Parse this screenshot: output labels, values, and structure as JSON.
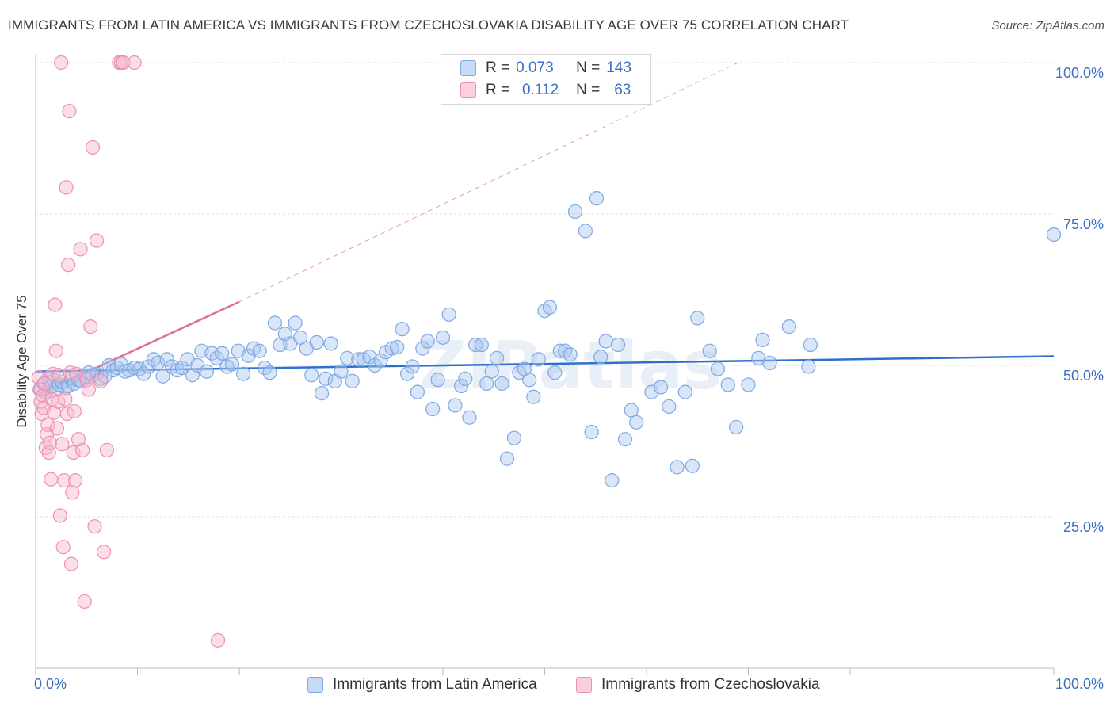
{
  "header": {
    "title": "IMMIGRANTS FROM LATIN AMERICA VS IMMIGRANTS FROM CZECHOSLOVAKIA DISABILITY AGE OVER 75 CORRELATION CHART",
    "source": "Source: ZipAtlas.com"
  },
  "watermark": "ZIPatlas",
  "stats_legend": {
    "rows": [
      {
        "r_label": "R =",
        "r_value": "0.073",
        "n_label": "N =",
        "n_value": "143",
        "color": "#a9c8f0"
      },
      {
        "r_label": "R =",
        "r_value": "0.112",
        "n_label": "N =",
        "n_value": "63",
        "color": "#f6b8cb"
      }
    ]
  },
  "chart_data": {
    "type": "scatter",
    "title": "IMMIGRANTS FROM LATIN AMERICA VS IMMIGRANTS FROM CZECHOSLOVAKIA DISABILITY AGE OVER 75 CORRELATION CHART",
    "xlabel": "",
    "ylabel": "Disability Age Over 75",
    "xlim": [
      0,
      100
    ],
    "ylim": [
      0,
      100
    ],
    "x_tick_labels": [
      "0.0%",
      "100.0%"
    ],
    "y_tick_labels": [
      "25.0%",
      "50.0%",
      "75.0%",
      "100.0%"
    ],
    "y_ticks": [
      25,
      50,
      75,
      100
    ],
    "grid": true,
    "legend_position": "bottom",
    "series": [
      {
        "name": "Immigrants from Latin America",
        "color": "#7fa8e4",
        "fill": "#a9c8f0",
        "trend": {
          "x": [
            0,
            100
          ],
          "y": [
            49.0,
            51.5
          ],
          "color": "#2f6fcc",
          "style": "solid"
        },
        "points": [
          [
            0.5,
            46
          ],
          [
            0.8,
            47
          ],
          [
            1,
            45.5
          ],
          [
            1.3,
            48
          ],
          [
            1.5,
            46.5
          ],
          [
            1.8,
            47.5
          ],
          [
            2,
            46
          ],
          [
            2.3,
            46.8
          ],
          [
            2.6,
            47.2
          ],
          [
            2.9,
            46.3
          ],
          [
            3.2,
            46.6
          ],
          [
            3.5,
            47.8
          ],
          [
            3.8,
            47
          ],
          [
            4.2,
            47.6
          ],
          [
            4.5,
            47.4
          ],
          [
            4.9,
            48.2
          ],
          [
            5.2,
            48.8
          ],
          [
            5.6,
            48.4
          ],
          [
            6.0,
            48.6
          ],
          [
            6.4,
            47.8
          ],
          [
            6.8,
            48.2
          ],
          [
            7.2,
            50
          ],
          [
            7.6,
            49.2
          ],
          [
            8.0,
            49.6
          ],
          [
            8.4,
            50.2
          ],
          [
            8.8,
            49
          ],
          [
            9.2,
            49.2
          ],
          [
            9.7,
            49.6
          ],
          [
            10.2,
            49.4
          ],
          [
            10.6,
            48.6
          ],
          [
            11.1,
            49.8
          ],
          [
            11.6,
            51
          ],
          [
            12.0,
            50.4
          ],
          [
            12.5,
            48.2
          ],
          [
            12.9,
            51
          ],
          [
            13.4,
            49.8
          ],
          [
            13.9,
            49.2
          ],
          [
            14.4,
            49.6
          ],
          [
            14.9,
            51
          ],
          [
            15.4,
            48.4
          ],
          [
            15.9,
            50
          ],
          [
            16.3,
            52.4
          ],
          [
            16.8,
            49
          ],
          [
            17.3,
            52
          ],
          [
            17.8,
            51.2
          ],
          [
            18.3,
            52
          ],
          [
            18.8,
            49.8
          ],
          [
            19.3,
            50.2
          ],
          [
            19.9,
            52.4
          ],
          [
            20.4,
            48.6
          ],
          [
            20.9,
            51.6
          ],
          [
            21.4,
            52.8
          ],
          [
            22.0,
            52.4
          ],
          [
            22.5,
            49.6
          ],
          [
            23.0,
            48.8
          ],
          [
            23.5,
            57
          ],
          [
            24.0,
            53.4
          ],
          [
            24.5,
            55.2
          ],
          [
            25.0,
            53.6
          ],
          [
            25.5,
            57
          ],
          [
            26.0,
            54.6
          ],
          [
            26.6,
            52.8
          ],
          [
            27.1,
            48.4
          ],
          [
            27.6,
            53.8
          ],
          [
            28.1,
            45.4
          ],
          [
            28.5,
            47.8
          ],
          [
            29.0,
            53.6
          ],
          [
            29.4,
            47.4
          ],
          [
            30.0,
            49
          ],
          [
            30.6,
            51.2
          ],
          [
            31.1,
            47.4
          ],
          [
            31.7,
            51
          ],
          [
            32.2,
            51
          ],
          [
            32.8,
            51.4
          ],
          [
            33.3,
            50
          ],
          [
            33.9,
            50.8
          ],
          [
            34.4,
            52.2
          ],
          [
            35.0,
            52.8
          ],
          [
            35.5,
            53
          ],
          [
            36.0,
            56
          ],
          [
            36.5,
            48.6
          ],
          [
            37.0,
            49.8
          ],
          [
            37.5,
            45.6
          ],
          [
            38.0,
            52.8
          ],
          [
            38.5,
            54
          ],
          [
            39.0,
            42.8
          ],
          [
            39.5,
            47.6
          ],
          [
            40.0,
            54.6
          ],
          [
            40.6,
            58.4
          ],
          [
            41.2,
            43.4
          ],
          [
            41.8,
            46.6
          ],
          [
            42.2,
            47.8
          ],
          [
            42.6,
            41.4
          ],
          [
            43.2,
            53.4
          ],
          [
            43.8,
            53.4
          ],
          [
            44.3,
            47
          ],
          [
            44.8,
            49
          ],
          [
            45.3,
            51.2
          ],
          [
            45.8,
            47
          ],
          [
            46.3,
            34.6
          ],
          [
            47.0,
            38
          ],
          [
            47.5,
            48.8
          ],
          [
            48.0,
            49.4
          ],
          [
            48.5,
            47.6
          ],
          [
            48.9,
            44.8
          ],
          [
            49.4,
            51
          ],
          [
            50.0,
            59
          ],
          [
            50.5,
            59.6
          ],
          [
            51.0,
            48.8
          ],
          [
            51.5,
            52.4
          ],
          [
            52.0,
            52.4
          ],
          [
            52.5,
            51.8
          ],
          [
            53.0,
            75.4
          ],
          [
            54.0,
            72.2
          ],
          [
            54.6,
            39
          ],
          [
            55.1,
            77.6
          ],
          [
            55.5,
            51.4
          ],
          [
            56.0,
            54
          ],
          [
            56.6,
            31
          ],
          [
            57.2,
            53.4
          ],
          [
            57.9,
            37.8
          ],
          [
            58.5,
            42.6
          ],
          [
            59.0,
            40.6
          ],
          [
            60.5,
            45.6
          ],
          [
            61.4,
            46.4
          ],
          [
            62.2,
            43.2
          ],
          [
            63.0,
            33.2
          ],
          [
            63.8,
            45.6
          ],
          [
            64.5,
            33.4
          ],
          [
            65.0,
            57.8
          ],
          [
            66.2,
            52.4
          ],
          [
            67.0,
            49.4
          ],
          [
            68.0,
            46.8
          ],
          [
            68.8,
            39.8
          ],
          [
            70.0,
            46.8
          ],
          [
            71.0,
            51.2
          ],
          [
            71.4,
            54.2
          ],
          [
            72.1,
            50.4
          ],
          [
            74.0,
            56.4
          ],
          [
            75.9,
            49.8
          ],
          [
            76.1,
            53.4
          ],
          [
            100,
            71.6
          ]
        ]
      },
      {
        "name": "Immigrants from Czechoslovakia",
        "color": "#f08fb0",
        "fill": "#f6b8cb",
        "trend": {
          "x": [
            0,
            20
          ],
          "y": [
            45.0,
            60.5
          ],
          "color": "#e0709a",
          "style": "solid",
          "extended_to": [
            69,
            100
          ],
          "extended_style": "dashed"
        },
        "points": [
          [
            0.3,
            48
          ],
          [
            0.4,
            46
          ],
          [
            0.5,
            44
          ],
          [
            0.6,
            42
          ],
          [
            0.7,
            45
          ],
          [
            0.8,
            43
          ],
          [
            0.9,
            47
          ],
          [
            1.0,
            36.4
          ],
          [
            1.1,
            38.6
          ],
          [
            1.2,
            40.2
          ],
          [
            1.3,
            35.6
          ],
          [
            1.4,
            37.2
          ],
          [
            1.5,
            31.2
          ],
          [
            1.6,
            44.4
          ],
          [
            1.7,
            48.6
          ],
          [
            1.8,
            42.2
          ],
          [
            1.9,
            60
          ],
          [
            2.0,
            52.4
          ],
          [
            2.1,
            39.6
          ],
          [
            2.2,
            44
          ],
          [
            2.3,
            48.4
          ],
          [
            2.4,
            25.2
          ],
          [
            2.5,
            100
          ],
          [
            2.6,
            37
          ],
          [
            2.7,
            20
          ],
          [
            2.8,
            31
          ],
          [
            2.9,
            44.4
          ],
          [
            3.0,
            79.4
          ],
          [
            3.1,
            42
          ],
          [
            3.2,
            66.6
          ],
          [
            3.3,
            92
          ],
          [
            3.4,
            48.8
          ],
          [
            3.5,
            17.2
          ],
          [
            3.6,
            29
          ],
          [
            3.7,
            35.6
          ],
          [
            3.8,
            42.4
          ],
          [
            3.9,
            31
          ],
          [
            4.0,
            48.6
          ],
          [
            4.2,
            37.8
          ],
          [
            4.4,
            69.2
          ],
          [
            4.6,
            36
          ],
          [
            4.8,
            11
          ],
          [
            5.0,
            47.6
          ],
          [
            5.2,
            46
          ],
          [
            5.4,
            56.4
          ],
          [
            5.6,
            86
          ],
          [
            5.8,
            23.4
          ],
          [
            6.0,
            70.6
          ],
          [
            6.4,
            47.4
          ],
          [
            6.7,
            19.2
          ],
          [
            7.0,
            36
          ],
          [
            8.2,
            100
          ],
          [
            8.4,
            100
          ],
          [
            8.6,
            100
          ],
          [
            9.7,
            100
          ],
          [
            17.9,
            4.6
          ]
        ]
      }
    ]
  },
  "legend": {
    "items": [
      {
        "label": "Immigrants from Latin America",
        "color": "#a9c8f0",
        "border": "#7fa8e4"
      },
      {
        "label": "Immigrants from Czechoslovakia",
        "color": "#f6b8cb",
        "border": "#f08fb0"
      }
    ]
  }
}
